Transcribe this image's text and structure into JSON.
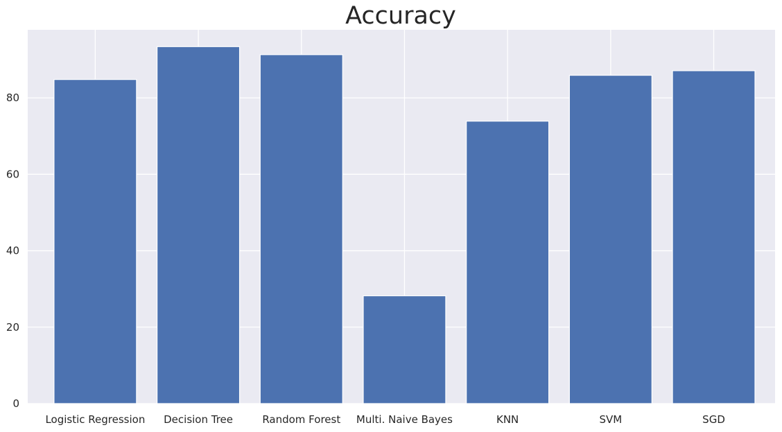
{
  "chart_data": {
    "type": "bar",
    "title": "Accuracy",
    "xlabel": "",
    "ylabel": "",
    "categories": [
      "Logistic Regression",
      "Decision Tree",
      "Random Forest",
      "Multi. Naive Bayes",
      "KNN",
      "SVM",
      "SGD"
    ],
    "values": [
      84.8,
      93.4,
      91.3,
      28.2,
      73.9,
      85.9,
      87.1
    ],
    "ylim": [
      0,
      97.8
    ],
    "yticks": [
      0,
      20,
      40,
      60,
      80
    ],
    "grid": true,
    "legend": "none",
    "colors": {
      "bar": "#4c72b0",
      "plot_background": "#eaeaf2",
      "grid": "#ffffff",
      "text": "#262626"
    }
  }
}
